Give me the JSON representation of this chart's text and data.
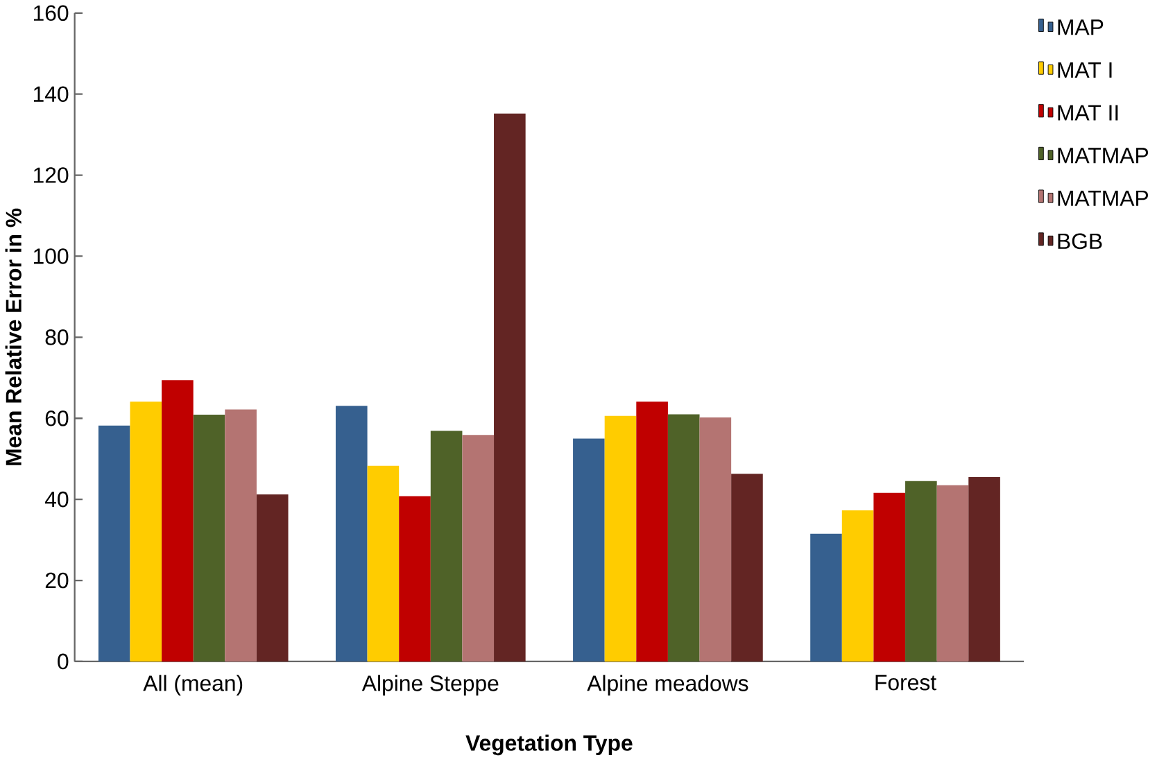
{
  "chart_data": {
    "type": "bar",
    "xlabel": "Vegetation Type",
    "ylabel": "Mean Relative Error in %",
    "categories": [
      "All (mean)",
      "Alpine Steppe",
      "Alpine meadows",
      "Forest"
    ],
    "series": [
      {
        "name": "MAP",
        "color": "#36608f",
        "values": [
          58.2,
          63.1,
          55.0,
          31.5
        ]
      },
      {
        "name": "MAT I",
        "color": "#ffcc00",
        "values": [
          64.1,
          48.3,
          60.6,
          37.3
        ]
      },
      {
        "name": "MAT II",
        "color": "#c00000",
        "values": [
          69.4,
          40.8,
          64.1,
          41.6
        ]
      },
      {
        "name": "MATMAP",
        "color": "#4f6228",
        "values": [
          60.9,
          56.9,
          61.0,
          44.5
        ]
      },
      {
        "name": "MATMAP",
        "color": "#b47472",
        "values": [
          62.2,
          55.9,
          60.2,
          43.5
        ]
      },
      {
        "name": "BGB",
        "color": "#632523",
        "values": [
          41.2,
          135.2,
          46.3,
          45.5
        ]
      }
    ],
    "ylim": [
      0,
      160
    ],
    "yticks": [
      0,
      20,
      40,
      60,
      80,
      100,
      120,
      140,
      160
    ],
    "grid": false,
    "legend": "right"
  }
}
